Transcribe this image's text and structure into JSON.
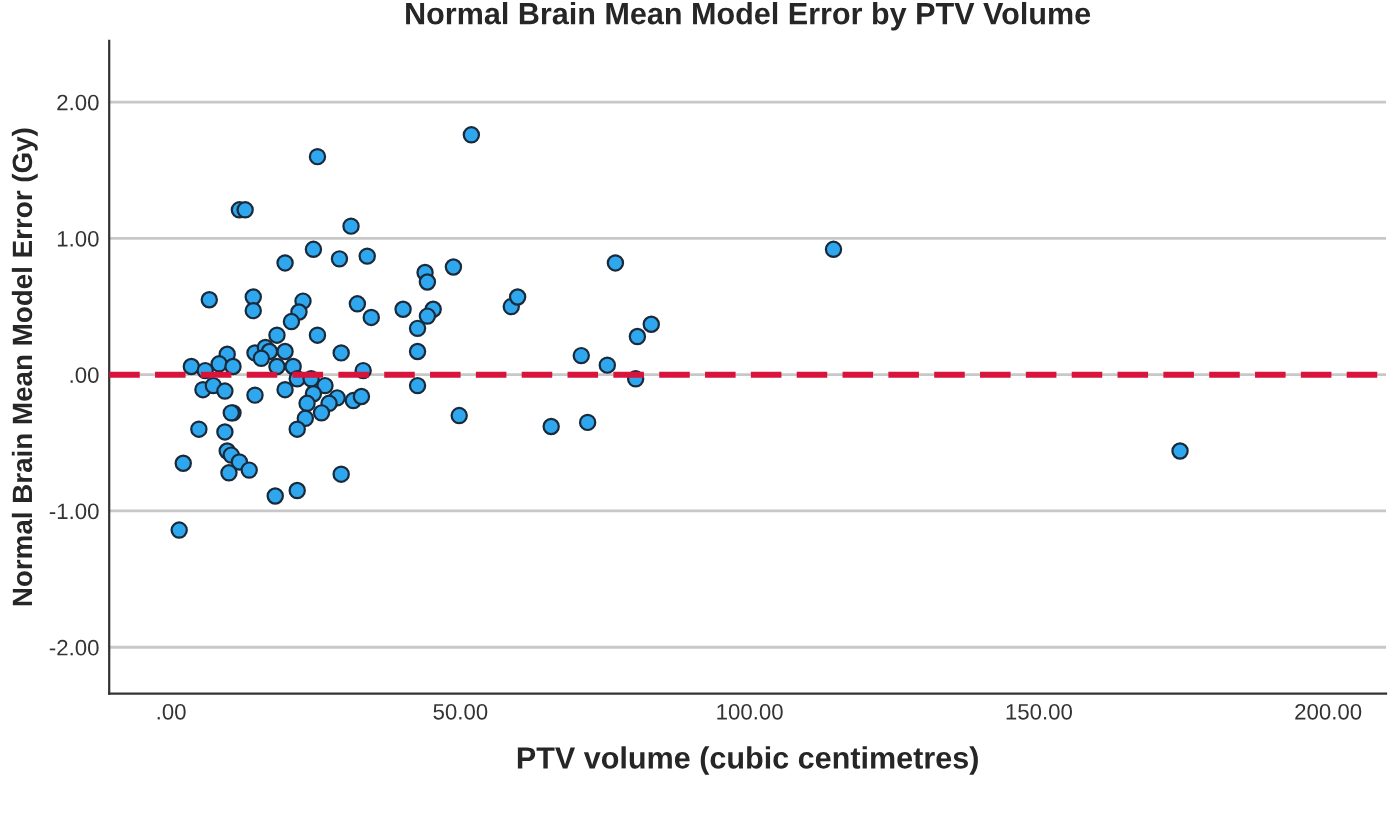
{
  "chart_data": {
    "type": "scatter",
    "title": "Normal Brain Mean Model Error by PTV Volume",
    "xlabel": "PTV volume (cubic centimetres)",
    "ylabel": "Normal Brain Mean Model Error (Gy)",
    "xlim": [
      -10.7,
      210
    ],
    "ylim": [
      -2.34,
      2.45
    ],
    "xticks": [
      {
        "value": 0,
        "label": ".00"
      },
      {
        "value": 50,
        "label": "50.00"
      },
      {
        "value": 100,
        "label": "100.00"
      },
      {
        "value": 150,
        "label": "150.00"
      },
      {
        "value": 200,
        "label": "200.00"
      }
    ],
    "yticks": [
      {
        "value": -2,
        "label": "-2.00"
      },
      {
        "value": -1,
        "label": "-1.00"
      },
      {
        "value": 0,
        "label": ".00"
      },
      {
        "value": 1,
        "label": "1.00"
      },
      {
        "value": 2,
        "label": "2.00"
      }
    ],
    "grid": "y",
    "marker": "circle",
    "ref_lines": [
      {
        "axis": "y",
        "value": 0,
        "color": "#d8143c",
        "line_style": "dashed"
      }
    ],
    "series": [
      {
        "color": "#2ea7ee",
        "x": [
          25.3,
          11.8,
          12.8,
          31.1,
          24.6,
          19.7,
          29.1,
          33.9,
          6.6,
          14.2,
          14.2,
          22.8,
          22.1,
          20.8,
          32.2,
          34.6,
          40.1,
          42.6,
          18.3,
          25.3,
          14.5,
          16.3,
          17.0,
          15.6,
          19.7,
          29.4,
          9.7,
          8.3,
          3.5,
          5.9,
          10.7,
          18.3,
          21.1,
          33.2,
          42.6,
          5.5,
          7.3,
          9.3,
          14.5,
          19.7,
          21.8,
          24.2,
          26.6,
          24.6,
          23.5,
          28.7,
          27.3,
          26.0,
          23.2,
          31.5,
          32.9,
          42.6,
          10.7,
          10.4,
          4.8,
          9.3,
          21.8,
          9.7,
          10.4,
          11.8,
          13.5,
          10.0,
          2.1,
          29.4,
          18.0,
          21.8,
          1.4,
          51.9,
          43.9,
          44.3,
          48.8,
          45.3,
          44.3,
          49.8,
          58.8,
          59.9,
          76.8,
          70.9,
          75.4,
          80.6,
          83.0,
          80.3,
          65.7,
          72.0,
          114.5,
          174.4
        ],
        "values": [
          1.6,
          1.21,
          1.21,
          1.09,
          0.92,
          0.82,
          0.85,
          0.87,
          0.55,
          0.57,
          0.47,
          0.54,
          0.46,
          0.39,
          0.52,
          0.42,
          0.48,
          0.34,
          0.29,
          0.29,
          0.16,
          0.2,
          0.17,
          0.12,
          0.17,
          0.16,
          0.15,
          0.08,
          0.06,
          0.03,
          0.06,
          0.06,
          0.06,
          0.03,
          0.17,
          -0.11,
          -0.08,
          -0.12,
          -0.15,
          -0.11,
          -0.03,
          -0.03,
          -0.08,
          -0.14,
          -0.21,
          -0.17,
          -0.21,
          -0.28,
          -0.32,
          -0.19,
          -0.16,
          -0.08,
          -0.28,
          -0.28,
          -0.4,
          -0.42,
          -0.4,
          -0.56,
          -0.59,
          -0.64,
          -0.7,
          -0.72,
          -0.65,
          -0.73,
          -0.89,
          -0.85,
          -1.14,
          1.76,
          0.75,
          0.68,
          0.79,
          0.48,
          0.43,
          -0.3,
          0.5,
          0.57,
          0.82,
          0.14,
          0.07,
          0.28,
          0.37,
          -0.03,
          -0.38,
          -0.35,
          0.92,
          -0.56
        ]
      }
    ]
  }
}
